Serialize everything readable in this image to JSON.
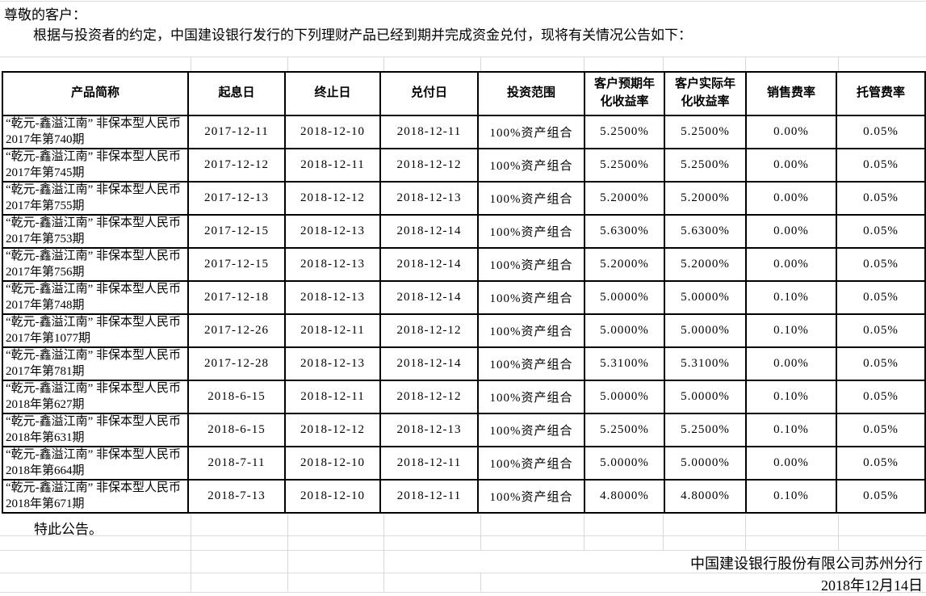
{
  "intro": {
    "salutation": "尊敬的客户：",
    "body": "根据与投资者的约定，中国建设银行发行的下列理财产品已经到期并完成资金兑付，现将有关情况公告如下："
  },
  "table": {
    "headers": [
      "产品简称",
      "起息日",
      "终止日",
      "兑付日",
      "投资范围",
      "客户预期年化收益率",
      "客户实际年化收益率",
      "销售费率",
      "托管费率"
    ],
    "rows": [
      [
        "“乾元-鑫溢江南” 非保本型人民币2017年第740期",
        "2017-12-11",
        "2018-12-10",
        "2018-12-11",
        "100%资产组合",
        "5.2500%",
        "5.2500%",
        "0.00%",
        "0.05%"
      ],
      [
        "“乾元-鑫溢江南” 非保本型人民币2017年第745期",
        "2017-12-12",
        "2018-12-11",
        "2018-12-12",
        "100%资产组合",
        "5.2500%",
        "5.2500%",
        "0.00%",
        "0.05%"
      ],
      [
        "“乾元-鑫溢江南” 非保本型人民币2017年第755期",
        "2017-12-13",
        "2018-12-12",
        "2018-12-13",
        "100%资产组合",
        "5.2000%",
        "5.2000%",
        "0.00%",
        "0.05%"
      ],
      [
        "“乾元-鑫溢江南” 非保本型人民币2017年第753期",
        "2017-12-15",
        "2018-12-13",
        "2018-12-14",
        "100%资产组合",
        "5.6300%",
        "5.6300%",
        "0.00%",
        "0.05%"
      ],
      [
        "“乾元-鑫溢江南” 非保本型人民币2017年第756期",
        "2017-12-15",
        "2018-12-13",
        "2018-12-14",
        "100%资产组合",
        "5.2000%",
        "5.2000%",
        "0.00%",
        "0.05%"
      ],
      [
        "“乾元-鑫溢江南” 非保本型人民币2017年第748期",
        "2017-12-18",
        "2018-12-13",
        "2018-12-14",
        "100%资产组合",
        "5.0000%",
        "5.0000%",
        "0.10%",
        "0.05%"
      ],
      [
        "“乾元-鑫溢江南” 非保本型人民币2017年第1077期",
        "2017-12-26",
        "2018-12-11",
        "2018-12-12",
        "100%资产组合",
        "5.0000%",
        "5.0000%",
        "0.10%",
        "0.05%"
      ],
      [
        "“乾元-鑫溢江南” 非保本型人民币2017年第781期",
        "2017-12-28",
        "2018-12-13",
        "2018-12-14",
        "100%资产组合",
        "5.3100%",
        "5.3100%",
        "0.00%",
        "0.05%"
      ],
      [
        "“乾元-鑫溢江南” 非保本型人民币2018年第627期",
        "2018-6-15",
        "2018-12-11",
        "2018-12-12",
        "100%资产组合",
        "5.0000%",
        "5.0000%",
        "0.10%",
        "0.05%"
      ],
      [
        "“乾元-鑫溢江南” 非保本型人民币2018年第631期",
        "2018-6-15",
        "2018-12-12",
        "2018-12-13",
        "100%资产组合",
        "5.2500%",
        "5.2500%",
        "0.10%",
        "0.05%"
      ],
      [
        "“乾元-鑫溢江南” 非保本型人民币2018年第664期",
        "2018-7-11",
        "2018-12-10",
        "2018-12-11",
        "100%资产组合",
        "5.0000%",
        "5.0000%",
        "0.00%",
        "0.05%"
      ],
      [
        "“乾元-鑫溢江南” 非保本型人民币2018年第671期",
        "2018-7-13",
        "2018-12-10",
        "2018-12-11",
        "100%资产组合",
        "4.8000%",
        "4.8000%",
        "0.10%",
        "0.05%"
      ]
    ]
  },
  "footer": {
    "closing": "特此公告。",
    "issuer": "中国建设银行股份有限公司苏州分行",
    "date": "2018年12月14日"
  },
  "colors": {
    "text": "#000000",
    "table_border": "#000000",
    "sheet_gridline": "#d9d9d9"
  }
}
